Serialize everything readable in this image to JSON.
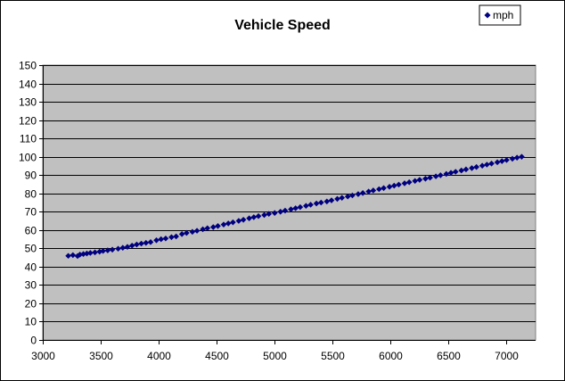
{
  "chart_data": {
    "type": "scatter",
    "title": "Vehicle Speed",
    "xlabel": "",
    "ylabel": "",
    "xlim": [
      3000,
      7250
    ],
    "ylim": [
      0,
      150
    ],
    "x_ticks": [
      3000,
      3500,
      4000,
      4500,
      5000,
      5500,
      6000,
      6500,
      7000
    ],
    "y_ticks": [
      0,
      10,
      20,
      30,
      40,
      50,
      60,
      70,
      80,
      90,
      100,
      110,
      120,
      130,
      140,
      150
    ],
    "grid": "horizontal",
    "legend_position": "top-right",
    "plot_background": "#C0C0C0",
    "series": [
      {
        "name": "mph",
        "color": "#000080",
        "marker": "diamond",
        "points": [
          [
            3220,
            45.9
          ],
          [
            3260,
            46.3
          ],
          [
            3300,
            45.8
          ],
          [
            3320,
            46.6
          ],
          [
            3350,
            46.9
          ],
          [
            3380,
            47.2
          ],
          [
            3410,
            47.5
          ],
          [
            3450,
            47.8
          ],
          [
            3490,
            48.2
          ],
          [
            3520,
            48.6
          ],
          [
            3560,
            48.9
          ],
          [
            3600,
            49.3
          ],
          [
            3650,
            49.8
          ],
          [
            3690,
            50.3
          ],
          [
            3730,
            50.8
          ],
          [
            3770,
            51.5
          ],
          [
            3810,
            52.1
          ],
          [
            3850,
            52.6
          ],
          [
            3890,
            53.0
          ],
          [
            3930,
            53.4
          ],
          [
            3980,
            54.4
          ],
          [
            4020,
            55.0
          ],
          [
            4060,
            55.4
          ],
          [
            4110,
            56.1
          ],
          [
            4150,
            56.5
          ],
          [
            4200,
            57.8
          ],
          [
            4240,
            58.4
          ],
          [
            4290,
            59.0
          ],
          [
            4330,
            59.6
          ],
          [
            4380,
            60.4
          ],
          [
            4420,
            61.0
          ],
          [
            4470,
            61.6
          ],
          [
            4510,
            62.2
          ],
          [
            4560,
            63.0
          ],
          [
            4600,
            63.6
          ],
          [
            4640,
            64.2
          ],
          [
            4690,
            65.0
          ],
          [
            4730,
            65.6
          ],
          [
            4780,
            66.4
          ],
          [
            4820,
            67.0
          ],
          [
            4860,
            67.6
          ],
          [
            4910,
            68.2
          ],
          [
            4950,
            68.8
          ],
          [
            5000,
            69.3
          ],
          [
            5050,
            70.0
          ],
          [
            5090,
            70.6
          ],
          [
            5140,
            71.3
          ],
          [
            5180,
            71.9
          ],
          [
            5220,
            72.5
          ],
          [
            5270,
            73.2
          ],
          [
            5310,
            73.8
          ],
          [
            5360,
            74.5
          ],
          [
            5400,
            75.0
          ],
          [
            5450,
            75.6
          ],
          [
            5490,
            76.2
          ],
          [
            5540,
            77.0
          ],
          [
            5580,
            77.6
          ],
          [
            5630,
            78.3
          ],
          [
            5670,
            78.9
          ],
          [
            5720,
            79.6
          ],
          [
            5760,
            80.2
          ],
          [
            5810,
            81.0
          ],
          [
            5850,
            81.6
          ],
          [
            5900,
            82.3
          ],
          [
            5940,
            82.9
          ],
          [
            5990,
            83.6
          ],
          [
            6030,
            84.2
          ],
          [
            6070,
            84.8
          ],
          [
            6120,
            85.5
          ],
          [
            6160,
            86.1
          ],
          [
            6210,
            86.8
          ],
          [
            6250,
            87.4
          ],
          [
            6300,
            88.0
          ],
          [
            6340,
            88.6
          ],
          [
            6390,
            89.3
          ],
          [
            6430,
            89.9
          ],
          [
            6480,
            90.6
          ],
          [
            6520,
            91.2
          ],
          [
            6560,
            91.8
          ],
          [
            6610,
            92.5
          ],
          [
            6650,
            93.1
          ],
          [
            6700,
            93.8
          ],
          [
            6740,
            94.4
          ],
          [
            6790,
            95.1
          ],
          [
            6830,
            95.7
          ],
          [
            6870,
            96.3
          ],
          [
            6920,
            97.0
          ],
          [
            6960,
            97.6
          ],
          [
            7000,
            98.2
          ],
          [
            7050,
            98.9
          ],
          [
            7090,
            99.5
          ],
          [
            7130,
            100.0
          ]
        ]
      }
    ]
  }
}
